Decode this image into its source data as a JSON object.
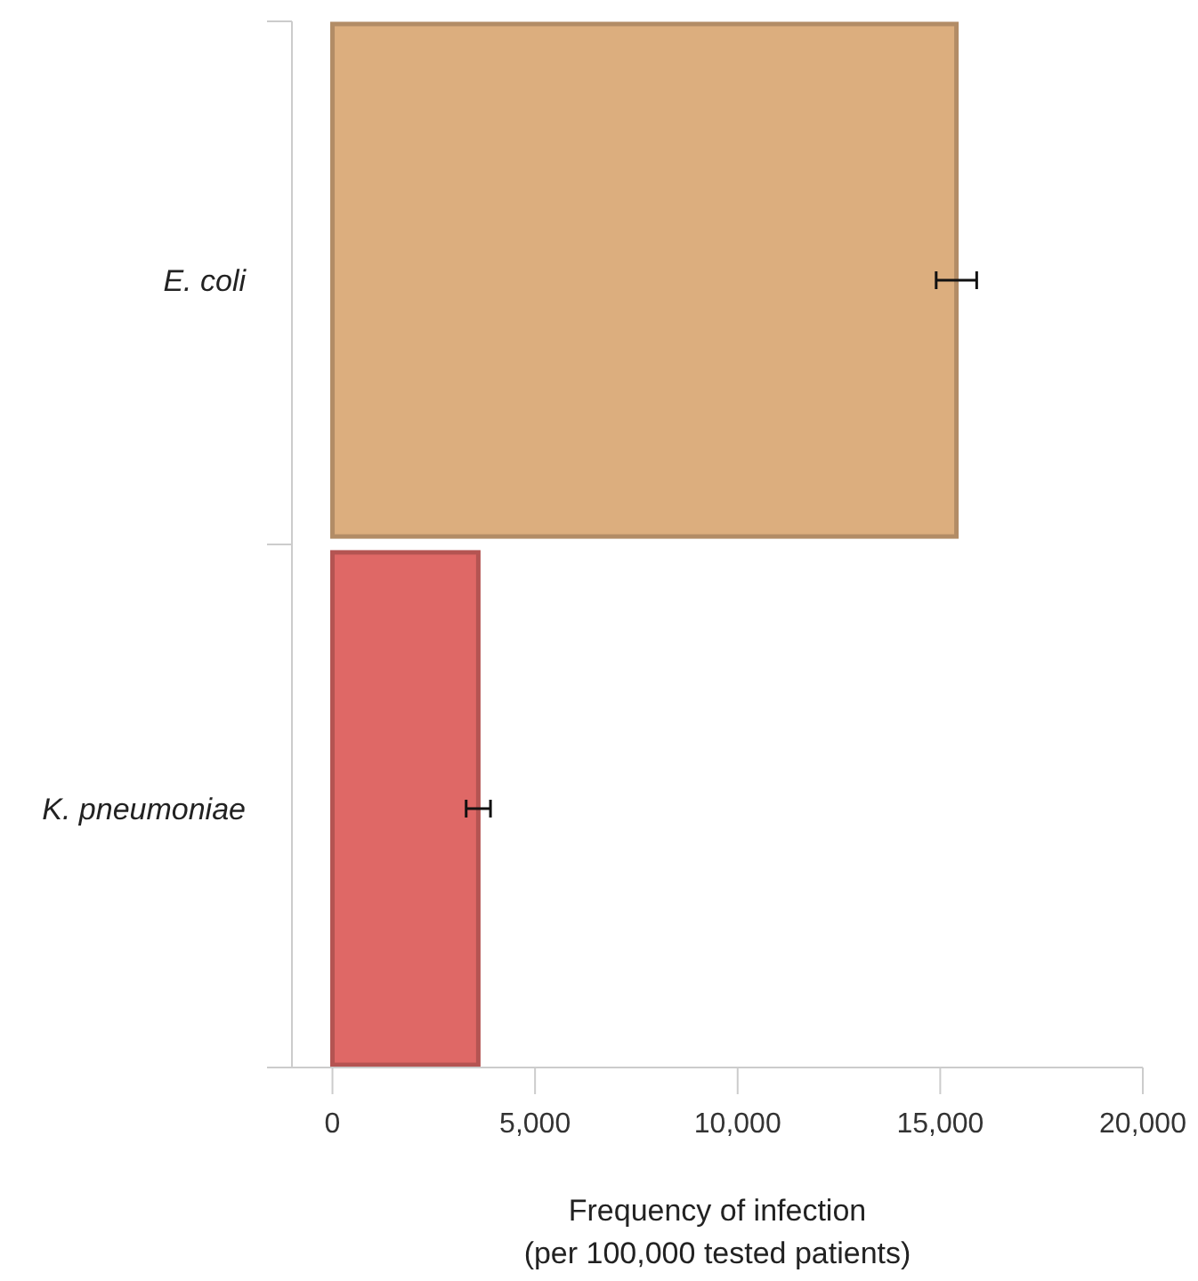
{
  "chart_data": {
    "type": "bar",
    "orientation": "horizontal",
    "xlabel": "Frequency of infection\n(per 100,000 tested patients)",
    "categories": [
      "E. coli",
      "K. pneumoniae"
    ],
    "values": [
      15400,
      3600
    ],
    "colors": [
      "#dcae7e",
      "#df6866"
    ],
    "errors": [
      [
        14900,
        15900
      ],
      [
        3300,
        3900
      ]
    ],
    "xlim": [
      -1000,
      20000
    ],
    "xticks": [
      {
        "value": 0,
        "label": "0"
      },
      {
        "value": 5000,
        "label": "5,000"
      },
      {
        "value": 10000,
        "label": "10,000"
      },
      {
        "value": 15000,
        "label": "15,000"
      },
      {
        "value": 20000,
        "label": "20,000"
      }
    ],
    "grid": false
  }
}
